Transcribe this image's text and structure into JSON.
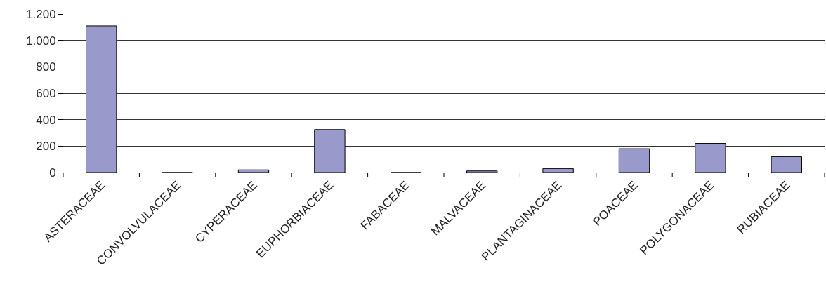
{
  "chart_data": {
    "type": "bar",
    "categories": [
      "ASTERACEAE",
      "CONVOLVULACEAE",
      "CYPERACEAE",
      "EUPHORBIACEAE",
      "FABACEAE",
      "MALVACEAE",
      "PLANTAGINACEAE",
      "POACEAE",
      "POLYGONACEAE",
      "RUBIACEAE"
    ],
    "values": [
      1110,
      0,
      20,
      325,
      0,
      12,
      30,
      180,
      220,
      120
    ],
    "color": "#9999cc",
    "ylim": [
      0,
      1200
    ],
    "yticks": [
      0,
      {
        "value": 200,
        "label": "200"
      },
      {
        "value": 400,
        "label": "400"
      },
      {
        "value": 600,
        "label": "600"
      },
      {
        "value": 800,
        "label": "800"
      },
      {
        "value": 1000,
        "label": "1.000"
      },
      {
        "value": 1200,
        "label": "1.200"
      }
    ],
    "grid": "y"
  }
}
